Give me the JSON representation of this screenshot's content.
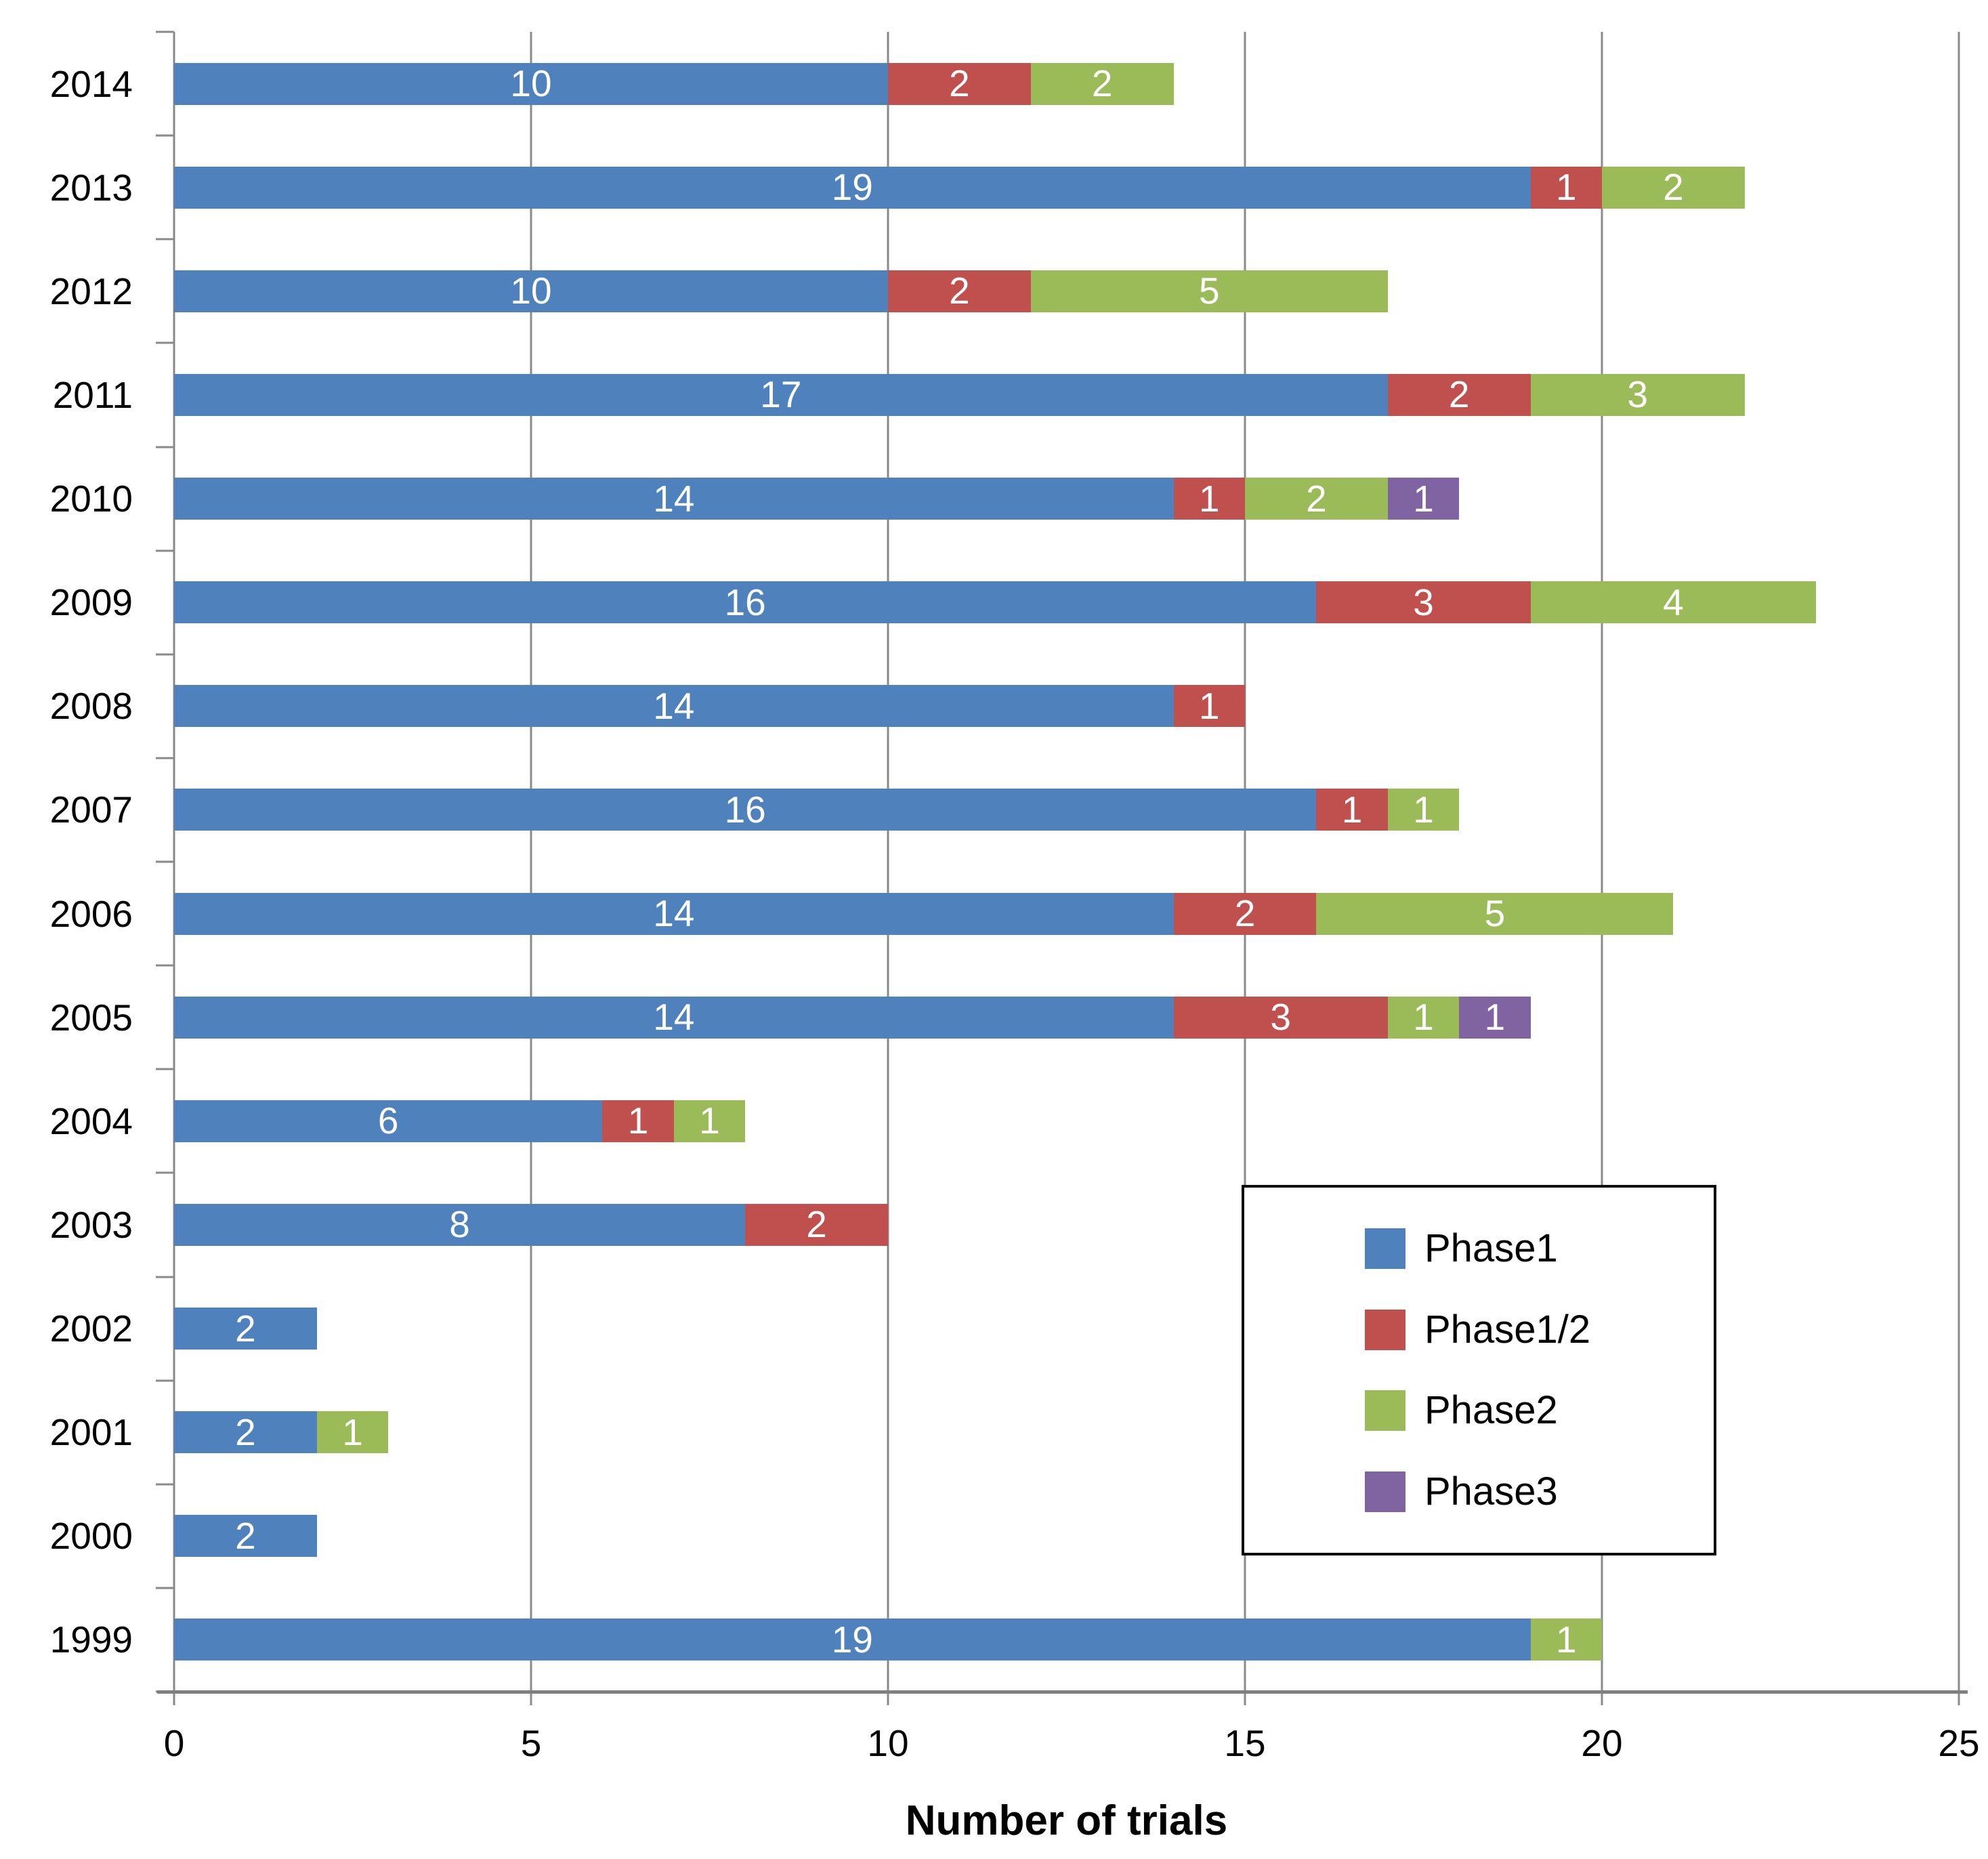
{
  "page": {
    "background": "#ffffff"
  },
  "chart_data": {
    "type": "bar",
    "orientation": "horizontal",
    "stacked": true,
    "title": "",
    "xlabel": "Number of trials",
    "ylabel": "",
    "categories": [
      "2014",
      "2013",
      "2012",
      "2011",
      "2010",
      "2009",
      "2008",
      "2007",
      "2006",
      "2005",
      "2004",
      "2003",
      "2002",
      "2001",
      "2000",
      "1999"
    ],
    "series": [
      {
        "name": "Phase1",
        "color": "#4F81BD",
        "values": [
          10,
          19,
          10,
          17,
          14,
          16,
          14,
          16,
          14,
          14,
          6,
          8,
          2,
          2,
          2,
          19
        ]
      },
      {
        "name": "Phase1/2",
        "color": "#C0504D",
        "values": [
          2,
          1,
          2,
          2,
          1,
          3,
          1,
          1,
          2,
          3,
          1,
          2,
          0,
          0,
          0,
          0
        ]
      },
      {
        "name": "Phase2",
        "color": "#9BBB59",
        "values": [
          2,
          2,
          5,
          3,
          2,
          4,
          0,
          1,
          5,
          1,
          1,
          0,
          0,
          1,
          0,
          1
        ]
      },
      {
        "name": "Phase3",
        "color": "#8064A2",
        "values": [
          0,
          0,
          0,
          0,
          1,
          0,
          0,
          0,
          0,
          1,
          0,
          0,
          0,
          0,
          0,
          0
        ]
      }
    ],
    "data_label_color": "#ffffff",
    "xlim": [
      0,
      25
    ],
    "x_ticks": [
      0,
      5,
      10,
      15,
      20,
      25
    ],
    "grid": true,
    "gridline_color": "#8a8a8a",
    "axis_color": "#808080",
    "legend_position": "inside-right",
    "legend_entries": [
      "Phase1",
      "Phase1/2",
      "Phase2",
      "Phase3"
    ]
  }
}
